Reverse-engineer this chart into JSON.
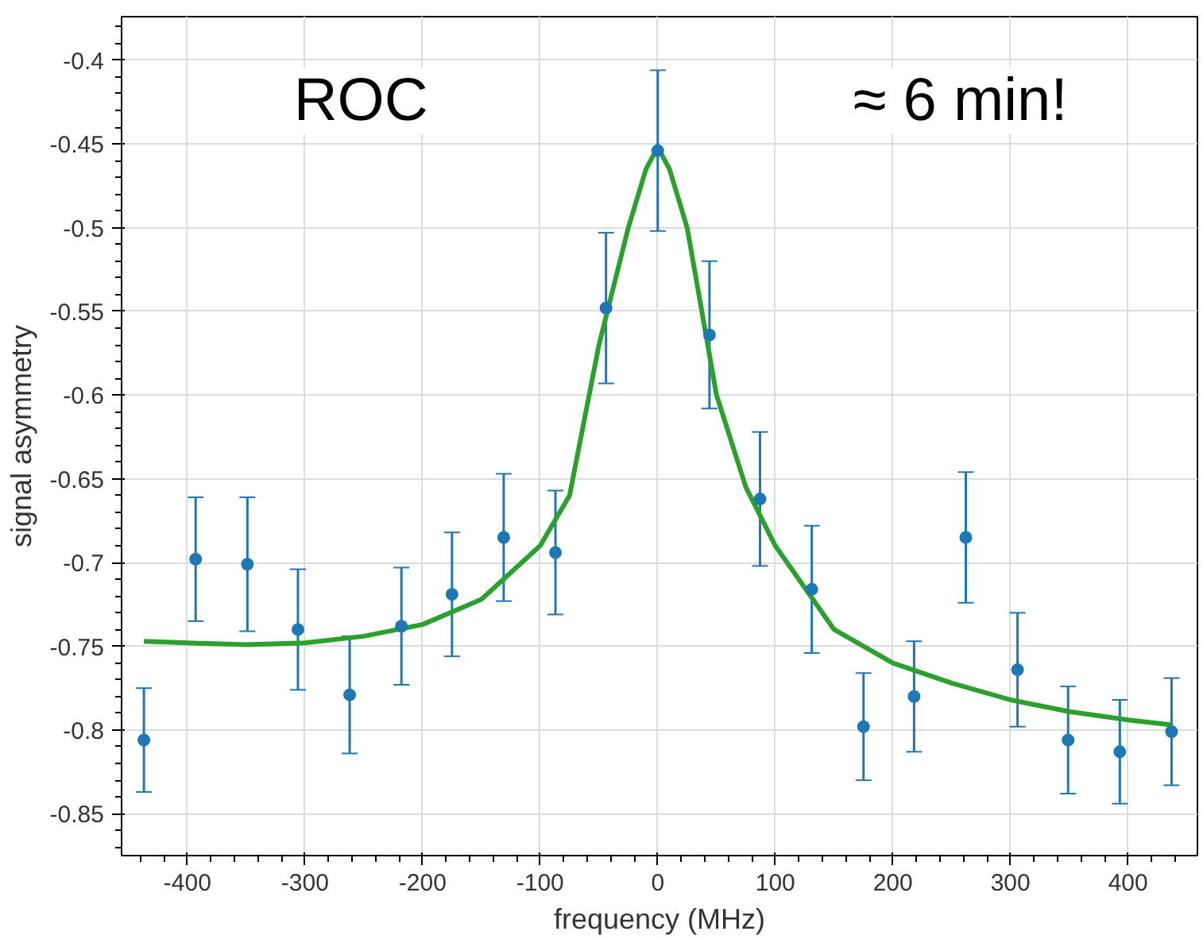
{
  "chart_data": {
    "type": "scatter",
    "xlabel": "frequency (MHz)",
    "ylabel": "signal asymmetry",
    "annotations": [
      "ROC",
      "≈ 6 min!"
    ],
    "xlim": [
      -456,
      459
    ],
    "ylim": [
      -0.875,
      -0.374
    ],
    "xticks": [
      -400,
      -300,
      -200,
      -100,
      0,
      100,
      200,
      300,
      400
    ],
    "yticks": [
      {
        "value": -0.85,
        "label": "-0.85"
      },
      {
        "value": -0.8,
        "label": "-0.8"
      },
      {
        "value": -0.75,
        "label": "-0.75"
      },
      {
        "value": -0.7,
        "label": "-0.7"
      },
      {
        "value": -0.65,
        "label": "-0.65"
      },
      {
        "value": -0.6,
        "label": "-0.6"
      },
      {
        "value": -0.55,
        "label": "-0.55"
      },
      {
        "value": -0.5,
        "label": "-0.5"
      },
      {
        "value": -0.45,
        "label": "-0.45"
      },
      {
        "value": -0.4,
        "label": "-0.4"
      }
    ],
    "grid": true,
    "series": [
      {
        "marker": "circle",
        "color": "#1f77b4",
        "x": [
          -437,
          -393,
          -349,
          -306,
          -262,
          -218,
          -175,
          -131,
          -87,
          -44,
          0,
          44,
          87,
          131,
          175,
          218,
          262,
          306,
          349,
          393,
          437
        ],
        "values": [
          -0.806,
          -0.698,
          -0.701,
          -0.74,
          -0.779,
          -0.738,
          -0.719,
          -0.685,
          -0.694,
          -0.548,
          -0.454,
          -0.564,
          -0.662,
          -0.716,
          -0.798,
          -0.78,
          -0.685,
          -0.764,
          -0.806,
          -0.813,
          -0.801
        ],
        "errors": [
          0.031,
          0.037,
          0.04,
          0.036,
          0.035,
          0.035,
          0.037,
          0.038,
          0.037,
          0.045,
          0.048,
          0.044,
          0.04,
          0.038,
          0.032,
          0.033,
          0.039,
          0.034,
          0.032,
          0.031,
          0.032
        ]
      },
      {
        "type": "line",
        "marker": "none",
        "color": "#2ca02c",
        "x": [
          -437,
          -400,
          -350,
          -300,
          -250,
          -200,
          -150,
          -100,
          -75,
          -50,
          -25,
          -10,
          0,
          10,
          25,
          50,
          75,
          100,
          150,
          200,
          250,
          300,
          350,
          400,
          437
        ],
        "values": [
          -0.747,
          -0.748,
          -0.749,
          -0.748,
          -0.744,
          -0.737,
          -0.722,
          -0.69,
          -0.66,
          -0.57,
          -0.5,
          -0.465,
          -0.452,
          -0.465,
          -0.5,
          -0.6,
          -0.655,
          -0.69,
          -0.74,
          -0.76,
          -0.772,
          -0.782,
          -0.789,
          -0.794,
          -0.797
        ]
      }
    ]
  }
}
